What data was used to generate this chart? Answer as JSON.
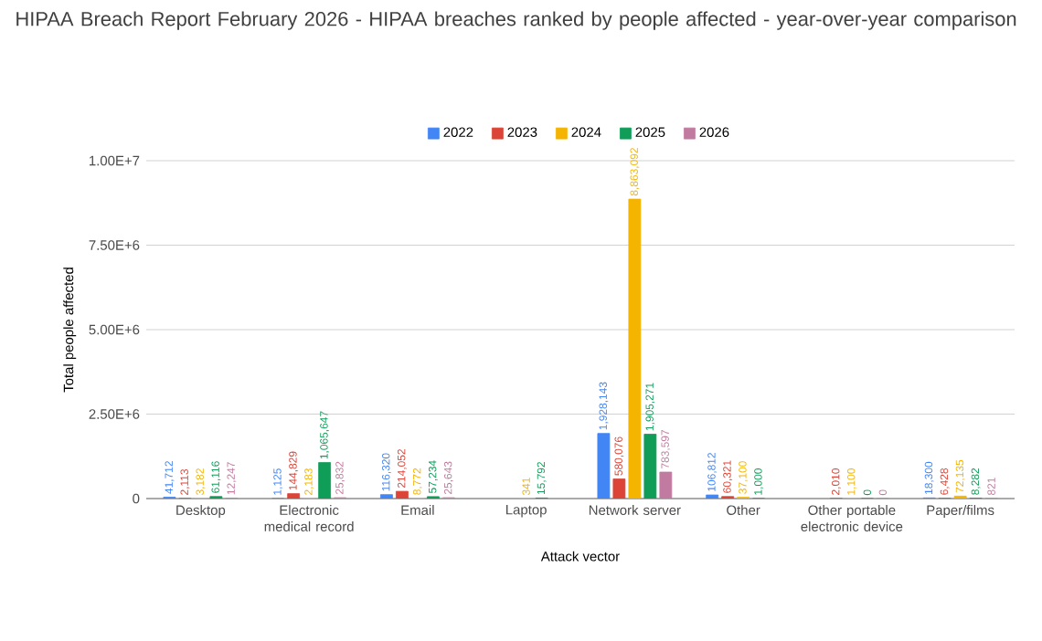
{
  "chart_data": {
    "type": "bar",
    "title": "HIPAA Breach Report February 2026 - HIPAA breaches ranked by people affected - year-over-year comparison",
    "xlabel": "Attack vector",
    "ylabel": "Total people affected",
    "categories": [
      "Desktop",
      "Electronic medical record",
      "Email",
      "Laptop",
      "Network server",
      "Other",
      "Other portable electronic device",
      "Paper/films"
    ],
    "series": [
      {
        "name": "2022",
        "color": "#4285f4",
        "values": [
          41712,
          1125,
          116320,
          null,
          1928143,
          106812,
          null,
          18300
        ],
        "value_labels": [
          "41,712",
          "1,125",
          "116,320",
          null,
          "1,928,143",
          "106,812",
          null,
          "18,300"
        ]
      },
      {
        "name": "2023",
        "color": "#db4437",
        "values": [
          2113,
          144829,
          214052,
          null,
          580076,
          60321,
          2010,
          6428
        ],
        "value_labels": [
          "2,113",
          "144,829",
          "214,052",
          null,
          "580,076",
          "60,321",
          "2,010",
          "6,428"
        ]
      },
      {
        "name": "2024",
        "color": "#f4b400",
        "values": [
          3182,
          2183,
          8772,
          341,
          8863092,
          37100,
          1100,
          72135
        ],
        "value_labels": [
          "3,182",
          "2,183",
          "8,772",
          "341",
          "8,863,092",
          "37,100",
          "1,100",
          "72,135"
        ]
      },
      {
        "name": "2025",
        "color": "#0f9d58",
        "values": [
          61116,
          1065647,
          57234,
          15792,
          1905271,
          1000,
          0,
          8282
        ],
        "value_labels": [
          "61,116",
          "1,065,647",
          "57,234",
          "15,792",
          "1,905,271",
          "1,000",
          "0",
          "8,282"
        ]
      },
      {
        "name": "2026",
        "color": "#c27ba0",
        "values": [
          12247,
          25832,
          25643,
          null,
          783597,
          null,
          0,
          821
        ],
        "value_labels": [
          "12,247",
          "25,832",
          "25,643",
          null,
          "783,597",
          null,
          "0",
          "821"
        ]
      }
    ],
    "ylim": [
      0,
      10000000
    ],
    "yticks": [
      0,
      {
        "value": 2500000,
        "label": "2.50E+6"
      },
      {
        "value": 5000000,
        "label": "5.00E+6"
      },
      {
        "value": 7500000,
        "label": "7.50E+6"
      },
      {
        "value": 10000000,
        "label": "1.00E+7"
      }
    ],
    "grid": "y",
    "legend": "top"
  }
}
